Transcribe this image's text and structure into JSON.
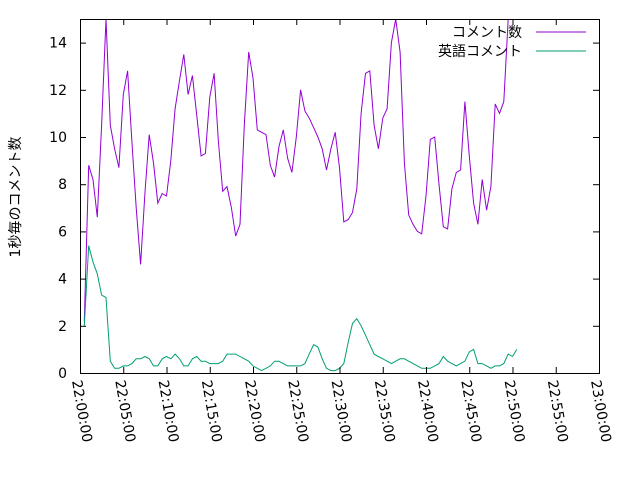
{
  "chart_data": {
    "type": "line",
    "ylabel": "1秒毎のコメント数",
    "xlabel": "",
    "ylim": [
      0,
      15
    ],
    "xlim": [
      "22:00:00",
      "23:00:00"
    ],
    "x_ticks": [
      "22:00:00",
      "22:05:00",
      "22:10:00",
      "22:15:00",
      "22:20:00",
      "22:25:00",
      "22:30:00",
      "22:35:00",
      "22:40:00",
      "22:45:00",
      "22:50:00",
      "22:55:00",
      "23:00:00"
    ],
    "y_ticks": [
      "0",
      "2",
      "4",
      "6",
      "8",
      "10",
      "12",
      "14"
    ],
    "legend_position": "top-right",
    "grid": false,
    "x_step_seconds": 30,
    "x_start": "22:00:00",
    "series": [
      {
        "name": "コメント数",
        "color": "#9400d3",
        "values": [
          2.2,
          8.8,
          8.2,
          6.6,
          10.5,
          15.0,
          10.5,
          9.5,
          8.7,
          11.8,
          12.8,
          9.8,
          7.0,
          4.6,
          7.6,
          10.1,
          8.9,
          7.2,
          7.6,
          7.5,
          9.0,
          11.2,
          12.4,
          13.5,
          11.8,
          12.6,
          10.9,
          9.2,
          9.3,
          11.7,
          12.7,
          9.8,
          7.7,
          7.9,
          7.0,
          5.8,
          6.3,
          10.5,
          13.6,
          12.5,
          10.3,
          10.2,
          10.1,
          8.8,
          8.3,
          9.6,
          10.3,
          9.1,
          8.5,
          10.0,
          12.0,
          11.1,
          10.8,
          10.4,
          10.0,
          9.5,
          8.6,
          9.5,
          10.2,
          8.7,
          6.4,
          6.5,
          6.8,
          7.8,
          11.0,
          12.7,
          12.8,
          10.5,
          9.5,
          10.8,
          11.2,
          14.0,
          15.0,
          13.6,
          8.9,
          6.7,
          6.3,
          6.0,
          5.9,
          7.5,
          9.9,
          10.0,
          8.0,
          6.2,
          6.1,
          7.8,
          8.5,
          8.6,
          11.5,
          9.2,
          7.2,
          6.3,
          8.2,
          6.9,
          7.9,
          11.4,
          11.0,
          11.5,
          15.0
        ]
      },
      {
        "name": "英語コメント",
        "color": "#009e73",
        "values": [
          2.0,
          5.4,
          4.7,
          4.2,
          3.3,
          3.2,
          0.5,
          0.2,
          0.2,
          0.3,
          0.3,
          0.4,
          0.6,
          0.6,
          0.7,
          0.6,
          0.3,
          0.3,
          0.6,
          0.7,
          0.6,
          0.8,
          0.6,
          0.3,
          0.3,
          0.6,
          0.7,
          0.5,
          0.5,
          0.4,
          0.4,
          0.4,
          0.5,
          0.8,
          0.8,
          0.8,
          0.7,
          0.6,
          0.5,
          0.3,
          0.2,
          0.1,
          0.2,
          0.3,
          0.5,
          0.5,
          0.4,
          0.3,
          0.3,
          0.3,
          0.3,
          0.4,
          0.8,
          1.2,
          1.1,
          0.6,
          0.2,
          0.1,
          0.1,
          0.2,
          0.4,
          1.3,
          2.1,
          2.3,
          2.0,
          1.6,
          1.2,
          0.8,
          0.7,
          0.6,
          0.5,
          0.4,
          0.5,
          0.6,
          0.6,
          0.5,
          0.4,
          0.3,
          0.2,
          0.2,
          0.2,
          0.3,
          0.4,
          0.7,
          0.5,
          0.4,
          0.3,
          0.4,
          0.5,
          0.9,
          1.0,
          0.4,
          0.4,
          0.3,
          0.2,
          0.3,
          0.3,
          0.4,
          0.8,
          0.7,
          1.0
        ]
      }
    ]
  }
}
